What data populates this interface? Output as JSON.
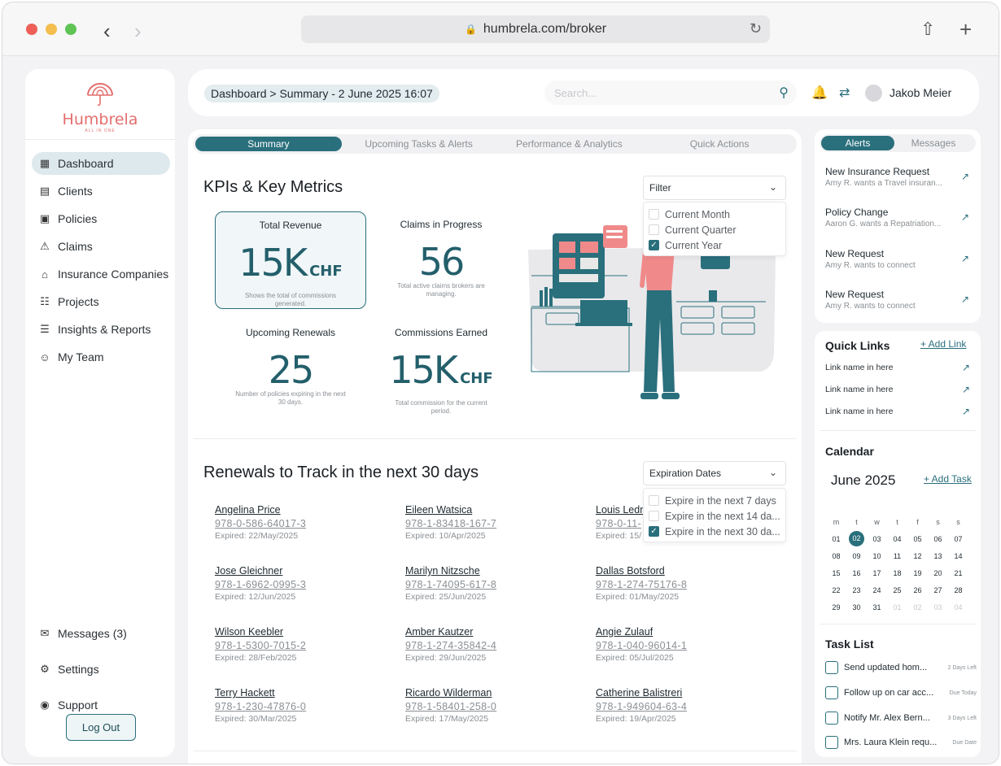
{
  "browser": {
    "url": "humbrela.com/broker"
  },
  "brand": {
    "name": "Humbrela",
    "tagline": "ALL IN ONE"
  },
  "colors": {
    "primary": "#2a6f7c",
    "brand": "#e46e6e"
  },
  "sidebar": {
    "items": [
      {
        "label": "Dashboard",
        "icon": "dashboard-icon"
      },
      {
        "label": "Clients",
        "icon": "id-card-icon"
      },
      {
        "label": "Policies",
        "icon": "policy-icon"
      },
      {
        "label": "Claims",
        "icon": "claims-icon"
      },
      {
        "label": "Insurance Companies",
        "icon": "building-icon"
      },
      {
        "label": "Projects",
        "icon": "document-icon"
      },
      {
        "label": "Insights & Reports",
        "icon": "report-icon"
      },
      {
        "label": "My Team",
        "icon": "user-icon"
      }
    ],
    "bottom": [
      {
        "label": "Messages (3)",
        "icon": "messages-icon"
      },
      {
        "label": "Settings",
        "icon": "settings-icon"
      },
      {
        "label": "Support",
        "icon": "support-icon"
      }
    ],
    "logout": "Log Out"
  },
  "header": {
    "breadcrumb": "Dashboard > Summary - 2 June 2025 16:07",
    "search_placeholder": "Search...",
    "user_name": "Jakob Meier"
  },
  "tabs": [
    "Summary",
    "Upcoming Tasks & Alerts",
    "Performance & Analytics",
    "Quick Actions"
  ],
  "kpis": {
    "title": "KPIs & Key Metrics",
    "filter": {
      "label": "Filter",
      "options": [
        {
          "label": "Current Month",
          "checked": false
        },
        {
          "label": "Current Quarter",
          "checked": false
        },
        {
          "label": "Current Year",
          "checked": true
        }
      ]
    },
    "cards": [
      {
        "label": "Total Revenue",
        "value": "15K",
        "unit": "CHF",
        "desc": "Shows the total of commissions generated."
      },
      {
        "label": "Claims in Progress",
        "value": "56",
        "unit": "",
        "desc": "Total active claims brokers are managing."
      },
      {
        "label": "Upcoming Renewals",
        "value": "25",
        "unit": "",
        "desc": "Number of policies expiring in the next 30 days."
      },
      {
        "label": "Commissions Earned",
        "value": "15K",
        "unit": "CHF",
        "desc": "Total commission for the current period."
      }
    ]
  },
  "renewals": {
    "title": "Renewals to Track in the next 30 days",
    "filter": {
      "label": "Expiration Dates",
      "options": [
        {
          "label": "Expire in the next 7 days",
          "checked": false
        },
        {
          "label": "Expire in the next 14 da...",
          "checked": false
        },
        {
          "label": "Expire in the next 30 da...",
          "checked": true
        }
      ]
    },
    "items": [
      {
        "name": "Angelina Price",
        "isbn": "978-0-586-64017-3",
        "expired": "Expired: 22/May/2025"
      },
      {
        "name": "Eileen Watsica",
        "isbn": "978-1-83418-167-7",
        "expired": "Expired: 10/Apr/2025"
      },
      {
        "name": "Louis Ledr",
        "isbn": "978-0-11-",
        "expired": "Expired: 15/"
      },
      {
        "name": "Jose Gleichner",
        "isbn": "978-1-6962-0995-3",
        "expired": "Expired: 12/Jun/2025"
      },
      {
        "name": "Marilyn Nitzsche",
        "isbn": "978-1-74095-617-8",
        "expired": "Expired: 25/Jun/2025"
      },
      {
        "name": "Dallas Botsford",
        "isbn": "978-1-274-75176-8",
        "expired": "Expired: 01/May/2025"
      },
      {
        "name": "Wilson Keebler",
        "isbn": "978-1-5300-7015-2",
        "expired": "Expired: 28/Feb/2025"
      },
      {
        "name": "Amber Kautzer",
        "isbn": "978-1-274-35842-4",
        "expired": "Expired: 29/Jun/2025"
      },
      {
        "name": "Angie Zulauf",
        "isbn": "978-1-040-96014-1",
        "expired": "Expired: 05/Jul/2025"
      },
      {
        "name": "Terry Hackett",
        "isbn": "978-1-230-47876-0",
        "expired": "Expired: 30/Mar/2025"
      },
      {
        "name": "Ricardo Wilderman",
        "isbn": "978-1-58401-258-0",
        "expired": "Expired: 17/May/2025"
      },
      {
        "name": "Catherine Balistreri",
        "isbn": "978-1-949604-63-4",
        "expired": "Expired: 19/Apr/2025"
      }
    ]
  },
  "alerts": {
    "tabs": [
      "Alerts",
      "Messages"
    ],
    "items": [
      {
        "title": "New Insurance Request",
        "sub": "Amy R. wants a Travel insuran..."
      },
      {
        "title": "Policy Change",
        "sub": "Aaron G. wants a Repatriation..."
      },
      {
        "title": "New Request",
        "sub": "Amy R. wants to connect"
      },
      {
        "title": "New Request",
        "sub": "Amy R. wants to connect"
      }
    ]
  },
  "quick_links": {
    "title": "Quick Links",
    "add": "+ Add Link",
    "items": [
      "Link name in here",
      "Link name in here",
      "Link name in here"
    ]
  },
  "calendar": {
    "title": "Calendar",
    "month": "June 2025",
    "add": "+ Add Task",
    "weekdays": [
      "m",
      "t",
      "w",
      "t",
      "f",
      "s",
      "s"
    ],
    "weeks": [
      [
        "01",
        "02",
        "03",
        "04",
        "05",
        "06",
        "07"
      ],
      [
        "08",
        "09",
        "10",
        "11",
        "12",
        "13",
        "14"
      ],
      [
        "15",
        "16",
        "17",
        "18",
        "19",
        "20",
        "21"
      ],
      [
        "22",
        "23",
        "24",
        "25",
        "26",
        "27",
        "28"
      ],
      [
        "29",
        "30",
        "31",
        "01",
        "02",
        "03",
        "04"
      ]
    ],
    "today": "02"
  },
  "tasks": {
    "title": "Task List",
    "items": [
      {
        "text": "Send updated hom...",
        "badge": "2 Days Left"
      },
      {
        "text": "Follow up on car acc...",
        "badge": "Due Today"
      },
      {
        "text": "Notify Mr. Alex Bern...",
        "badge": "3 Days Left"
      },
      {
        "text": "Mrs. Laura Klein requ...",
        "badge": "Due Date"
      }
    ]
  }
}
